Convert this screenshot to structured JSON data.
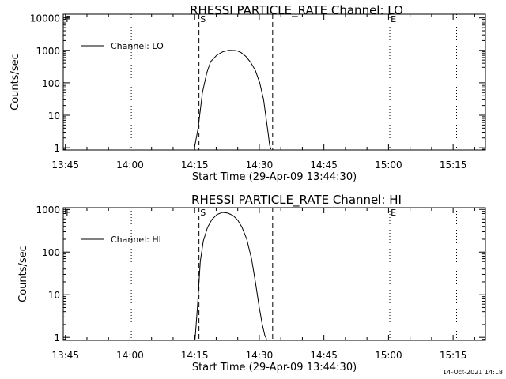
{
  "footer": {
    "timestamp": "14-Oct-2021 14:18"
  },
  "chart_data": [
    {
      "type": "line",
      "title": "RHESSI PARTICLE_RATE Channel: LO",
      "xlabel": "Start Time (29-Apr-09 13:44:30)",
      "ylabel": "Counts/sec",
      "yscale": "log",
      "xlim_minutes_from_start": [
        0,
        98
      ],
      "ylim": [
        0.85,
        13000
      ],
      "x_ticks": [
        {
          "minute": 0.5,
          "label": "13:45"
        },
        {
          "minute": 15.5,
          "label": "14:00"
        },
        {
          "minute": 30.5,
          "label": "14:15"
        },
        {
          "minute": 45.5,
          "label": "14:30"
        },
        {
          "minute": 60.5,
          "label": "14:45"
        },
        {
          "minute": 75.5,
          "label": "15:00"
        },
        {
          "minute": 90.5,
          "label": "15:15"
        }
      ],
      "y_ticks": [
        {
          "value": 1,
          "label": "1"
        },
        {
          "value": 10,
          "label": "10"
        },
        {
          "value": 100,
          "label": "100"
        },
        {
          "value": 1000,
          "label": "1000"
        },
        {
          "value": 10000,
          "label": "10000"
        }
      ],
      "legend": {
        "position": "top-left",
        "entries": [
          "Channel: LO"
        ]
      },
      "series": [
        {
          "name": "Channel: LO",
          "x": [
            30.4,
            31.3,
            32.3,
            33.3,
            34.2,
            35.7,
            37.0,
            38.4,
            39.9,
            40.5,
            41.3,
            42.4,
            43.5,
            44.6,
            45.6,
            46.5,
            47.1,
            47.6,
            47.9,
            48.2
          ],
          "y": [
            0.9,
            4,
            50,
            200,
            450,
            720,
            900,
            1000,
            990,
            950,
            850,
            650,
            430,
            240,
            100,
            30,
            8,
            2.5,
            1.2,
            0.9
          ]
        }
      ],
      "annotations": [
        {
          "label": "F",
          "minute": 0.6
        },
        {
          "label": "S",
          "minute": 31.8
        },
        {
          "label": "E",
          "minute": 76.0
        }
      ],
      "vlines": [
        {
          "minute": 15.8,
          "style": "dotted"
        },
        {
          "minute": 31.5,
          "style": "dashed"
        },
        {
          "minute": 48.6,
          "style": "dashed"
        },
        {
          "minute": 75.8,
          "style": "dotted"
        },
        {
          "minute": 91.3,
          "style": "dotted"
        }
      ]
    },
    {
      "type": "line",
      "title": "RHESSI PARTICLE_RATE Channel: HI",
      "xlabel": "Start Time (29-Apr-09 13:44:30)",
      "ylabel": "Counts/sec",
      "yscale": "log",
      "xlim_minutes_from_start": [
        0,
        98
      ],
      "ylim": [
        0.85,
        1100
      ],
      "x_ticks": [
        {
          "minute": 0.5,
          "label": "13:45"
        },
        {
          "minute": 15.5,
          "label": "14:00"
        },
        {
          "minute": 30.5,
          "label": "14:15"
        },
        {
          "minute": 45.5,
          "label": "14:30"
        },
        {
          "minute": 60.5,
          "label": "14:45"
        },
        {
          "minute": 75.5,
          "label": "15:00"
        },
        {
          "minute": 90.5,
          "label": "15:15"
        }
      ],
      "y_ticks": [
        {
          "value": 1,
          "label": "1"
        },
        {
          "value": 10,
          "label": "10"
        },
        {
          "value": 100,
          "label": "100"
        },
        {
          "value": 1000,
          "label": "1000"
        }
      ],
      "legend": {
        "position": "top-left",
        "entries": [
          "Channel: HI"
        ]
      },
      "series": [
        {
          "name": "Channel: HI",
          "x": [
            30.6,
            31.2,
            31.8,
            32.5,
            33.5,
            34.5,
            35.7,
            36.9,
            38.2,
            39.4,
            40.5,
            41.5,
            42.6,
            43.7,
            44.6,
            45.5,
            46.2,
            46.8,
            47.2
          ],
          "y": [
            0.9,
            6,
            60,
            180,
            380,
            580,
            760,
            850,
            820,
            720,
            560,
            380,
            200,
            70,
            20,
            5,
            2,
            1.1,
            0.9
          ]
        }
      ],
      "annotations": [
        {
          "label": "F",
          "minute": 0.6
        },
        {
          "label": "S",
          "minute": 31.8
        },
        {
          "label": "E",
          "minute": 76.0
        }
      ],
      "vlines": [
        {
          "minute": 15.8,
          "style": "dotted"
        },
        {
          "minute": 31.5,
          "style": "dashed"
        },
        {
          "minute": 48.6,
          "style": "dashed"
        },
        {
          "minute": 75.8,
          "style": "dotted"
        },
        {
          "minute": 91.3,
          "style": "dotted"
        }
      ]
    }
  ]
}
